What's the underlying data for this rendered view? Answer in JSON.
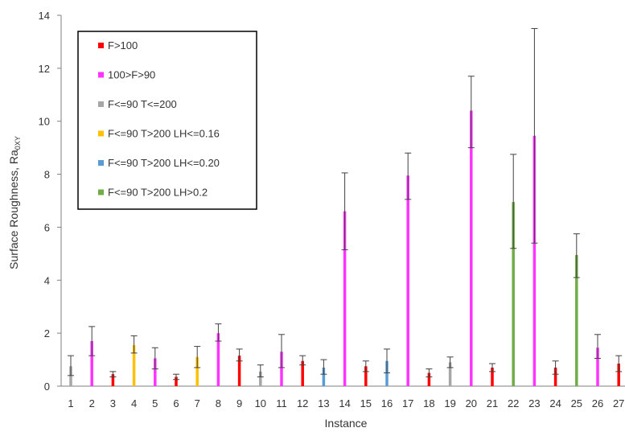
{
  "chart_data": {
    "type": "bar",
    "xlabel": "Instance",
    "ylabel_main": "Surface Roughness, Ra",
    "ylabel_sub": "0XY",
    "ylim": [
      0,
      14
    ],
    "yticks": [
      0,
      2,
      4,
      6,
      8,
      10,
      12,
      14
    ],
    "grid": false,
    "legend_position": "top-left",
    "legend": [
      {
        "label": "F>100",
        "color": "#ff0000"
      },
      {
        "label": "100>F>90",
        "color": "#ff33ff"
      },
      {
        "label": "F<=90 T<=200",
        "color": "#a6a6a6"
      },
      {
        "label": "F<=90 T>200 LH<=0.16",
        "color": "#ffc000"
      },
      {
        "label": "F<=90 T>200 LH<=0.20",
        "color": "#5b9bd5"
      },
      {
        "label": "F<=90 T>200 LH>0.2",
        "color": "#70ad47"
      }
    ],
    "categories": [
      "1",
      "2",
      "3",
      "4",
      "5",
      "6",
      "7",
      "8",
      "9",
      "10",
      "11",
      "12",
      "13",
      "14",
      "15",
      "16",
      "17",
      "18",
      "19",
      "20",
      "21",
      "22",
      "23",
      "24",
      "25",
      "26",
      "27"
    ],
    "points": [
      {
        "x": "1",
        "group": 2,
        "value": 0.75,
        "err_low": 0.4,
        "err_high": 1.15
      },
      {
        "x": "2",
        "group": 1,
        "value": 1.7,
        "err_low": 1.15,
        "err_high": 2.25
      },
      {
        "x": "3",
        "group": 0,
        "value": 0.45,
        "err_low": 0.35,
        "err_high": 0.55
      },
      {
        "x": "4",
        "group": 3,
        "value": 1.55,
        "err_low": 1.25,
        "err_high": 1.9
      },
      {
        "x": "5",
        "group": 1,
        "value": 1.05,
        "err_low": 0.65,
        "err_high": 1.45
      },
      {
        "x": "6",
        "group": 0,
        "value": 0.35,
        "err_low": 0.25,
        "err_high": 0.45
      },
      {
        "x": "7",
        "group": 3,
        "value": 1.1,
        "err_low": 0.7,
        "err_high": 1.5
      },
      {
        "x": "8",
        "group": 1,
        "value": 2.0,
        "err_low": 1.7,
        "err_high": 2.35
      },
      {
        "x": "9",
        "group": 0,
        "value": 1.15,
        "err_low": 0.95,
        "err_high": 1.4
      },
      {
        "x": "10",
        "group": 2,
        "value": 0.55,
        "err_low": 0.35,
        "err_high": 0.8
      },
      {
        "x": "11",
        "group": 1,
        "value": 1.3,
        "err_low": 0.7,
        "err_high": 1.95
      },
      {
        "x": "12",
        "group": 0,
        "value": 0.95,
        "err_low": 0.8,
        "err_high": 1.15
      },
      {
        "x": "13",
        "group": 4,
        "value": 0.7,
        "err_low": 0.45,
        "err_high": 1.0
      },
      {
        "x": "14",
        "group": 1,
        "value": 6.6,
        "err_low": 5.15,
        "err_high": 8.05
      },
      {
        "x": "15",
        "group": 0,
        "value": 0.75,
        "err_low": 0.55,
        "err_high": 0.95
      },
      {
        "x": "16",
        "group": 4,
        "value": 0.95,
        "err_low": 0.5,
        "err_high": 1.4
      },
      {
        "x": "17",
        "group": 1,
        "value": 7.95,
        "err_low": 7.05,
        "err_high": 8.8
      },
      {
        "x": "18",
        "group": 0,
        "value": 0.5,
        "err_low": 0.35,
        "err_high": 0.65
      },
      {
        "x": "19",
        "group": 2,
        "value": 0.9,
        "err_low": 0.7,
        "err_high": 1.1
      },
      {
        "x": "20",
        "group": 1,
        "value": 10.4,
        "err_low": 9.0,
        "err_high": 11.7
      },
      {
        "x": "21",
        "group": 0,
        "value": 0.7,
        "err_low": 0.55,
        "err_high": 0.85
      },
      {
        "x": "22",
        "group": 5,
        "value": 6.95,
        "err_low": 5.2,
        "err_high": 8.75
      },
      {
        "x": "23",
        "group": 1,
        "value": 9.45,
        "err_low": 5.4,
        "err_high": 13.5
      },
      {
        "x": "24",
        "group": 0,
        "value": 0.7,
        "err_low": 0.45,
        "err_high": 0.95
      },
      {
        "x": "25",
        "group": 5,
        "value": 4.95,
        "err_low": 4.1,
        "err_high": 5.75
      },
      {
        "x": "26",
        "group": 1,
        "value": 1.45,
        "err_low": 1.05,
        "err_high": 1.95
      },
      {
        "x": "27",
        "group": 0,
        "value": 0.85,
        "err_low": 0.55,
        "err_high": 1.15
      }
    ]
  }
}
